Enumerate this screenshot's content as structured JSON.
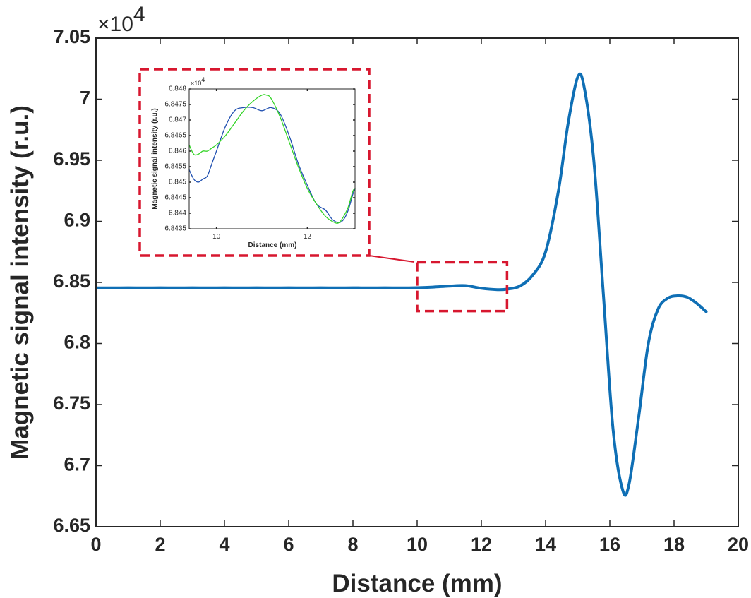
{
  "chart_data": [
    {
      "type": "line",
      "xlabel": "Distance (mm)",
      "ylabel": "Magnetic signal intensity (r.u.)",
      "y_exponent_label": "×10",
      "y_exponent_power": "4",
      "xlim": [
        0,
        20
      ],
      "ylim": [
        6.65,
        7.05
      ],
      "x_ticks": [
        "0",
        "2",
        "4",
        "6",
        "8",
        "10",
        "12",
        "14",
        "16",
        "18",
        "20"
      ],
      "y_ticks": [
        "6.65",
        "6.7",
        "6.75",
        "6.8",
        "6.85",
        "6.9",
        "6.95",
        "7",
        "7.05"
      ],
      "grid": false,
      "series": [
        {
          "color": "#0f6fb5",
          "x": [
            0,
            0.5,
            1,
            1.5,
            2,
            2.5,
            3,
            3.5,
            4,
            4.5,
            5,
            5.5,
            6,
            6.5,
            7,
            7.5,
            8,
            8.5,
            9,
            9.5,
            10,
            10.5,
            11,
            11.5,
            12,
            12.5,
            12.8,
            13.2,
            13.6,
            14,
            14.4,
            14.7,
            15,
            15.2,
            15.5,
            15.8,
            16.1,
            16.4,
            16.6,
            16.9,
            17.2,
            17.5,
            17.8,
            18.1,
            18.4,
            18.7,
            19
          ],
          "values": [
            6.8455,
            6.8455,
            6.8456,
            6.8455,
            6.8456,
            6.8455,
            6.8456,
            6.8455,
            6.8456,
            6.8455,
            6.8456,
            6.8455,
            6.8456,
            6.8455,
            6.8456,
            6.8455,
            6.8456,
            6.8455,
            6.8456,
            6.8455,
            6.8457,
            6.8462,
            6.847,
            6.8474,
            6.8452,
            6.8441,
            6.8445,
            6.847,
            6.856,
            6.875,
            6.925,
            6.98,
            7.018,
            7.01,
            6.95,
            6.84,
            6.73,
            6.68,
            6.685,
            6.74,
            6.8,
            6.828,
            6.837,
            6.839,
            6.838,
            6.833,
            6.826
          ]
        }
      ],
      "zoom_region_x": [
        10,
        12.8
      ],
      "zoom_region_y": [
        6.8265,
        6.8665
      ]
    },
    {
      "type": "line",
      "xlabel": "Distance (mm)",
      "ylabel": "Magnetic signal intensity (r.u.)",
      "y_exponent_label": "×10",
      "y_exponent_power": "4",
      "xlim": [
        9.4,
        13.05
      ],
      "ylim": [
        6.8435,
        6.848
      ],
      "x_ticks": [
        "10",
        "12"
      ],
      "y_ticks": [
        "6.8435",
        "6.844",
        "6.8445",
        "6.845",
        "6.8455",
        "6.846",
        "6.8465",
        "6.847",
        "6.8475",
        "6.848"
      ],
      "grid": false,
      "series": [
        {
          "color": "#1f4fb0",
          "x": [
            9.4,
            9.5,
            9.6,
            9.7,
            9.8,
            9.9,
            10.0,
            10.2,
            10.4,
            10.6,
            10.8,
            11.0,
            11.2,
            11.4,
            11.6,
            11.8,
            12.0,
            12.2,
            12.4,
            12.55,
            12.7,
            12.8,
            12.9,
            13.0,
            13.05
          ],
          "values": [
            6.8454,
            6.8451,
            6.845,
            6.8451,
            6.8452,
            6.8456,
            6.846,
            6.8468,
            6.8473,
            6.8474,
            6.8474,
            6.8473,
            6.8474,
            6.8472,
            6.8465,
            6.8456,
            6.8449,
            6.8443,
            6.8441,
            6.8438,
            6.8437,
            6.8438,
            6.8441,
            6.8446,
            6.8448
          ]
        },
        {
          "color": "#33d426",
          "x": [
            9.4,
            9.5,
            9.6,
            9.7,
            9.8,
            9.9,
            10.0,
            10.2,
            10.4,
            10.6,
            10.8,
            11.0,
            11.1,
            11.2,
            11.4,
            11.6,
            11.8,
            12.0,
            12.2,
            12.4,
            12.6,
            12.7,
            12.8,
            12.9,
            13.0,
            13.05
          ],
          "values": [
            6.8462,
            6.8459,
            6.8459,
            6.846,
            6.846,
            6.8461,
            6.8462,
            6.8465,
            6.8469,
            6.8473,
            6.8476,
            6.8478,
            6.8478,
            6.8477,
            6.8471,
            6.8463,
            6.8455,
            6.8448,
            6.8443,
            6.8439,
            6.8437,
            6.8437,
            6.8439,
            6.8442,
            6.8447,
            6.8448
          ]
        }
      ]
    }
  ]
}
